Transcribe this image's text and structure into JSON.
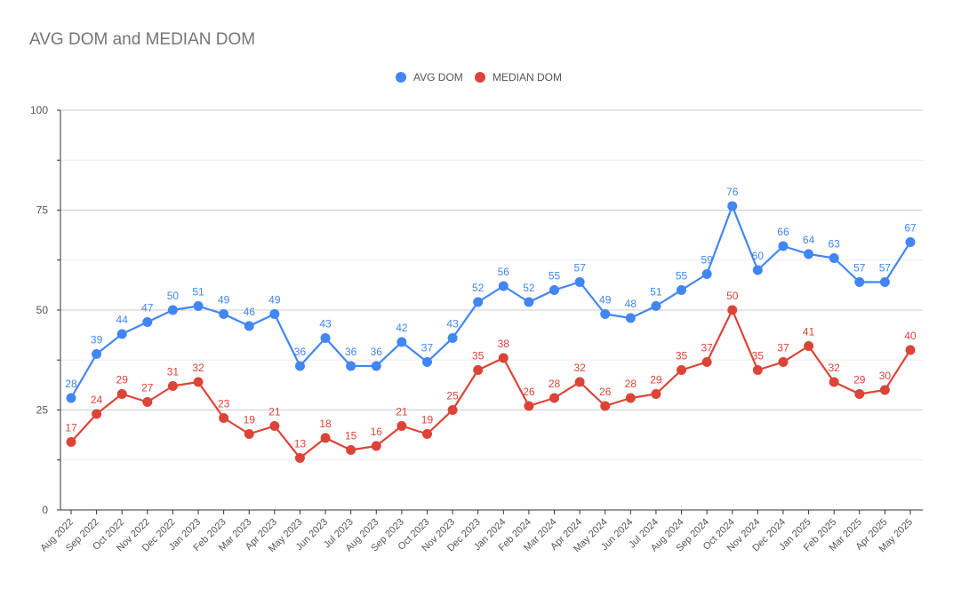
{
  "chart_data": {
    "type": "line",
    "title": "AVG DOM and MEDIAN DOM",
    "xlabel": "",
    "ylabel": "",
    "ylim": [
      0,
      100
    ],
    "yticks": [
      "0",
      "25",
      "50",
      "75",
      "100"
    ],
    "grid": true,
    "legend_position": "top",
    "categories": [
      "Aug 2022",
      "Sep 2022",
      "Oct 2022",
      "Nov 2022",
      "Dec 2022",
      "Jan 2023",
      "Feb 2023",
      "Mar 2023",
      "Apr 2023",
      "May 2023",
      "Jun 2023",
      "Jul 2023",
      "Aug 2023",
      "Sep 2023",
      "Oct 2023",
      "Nov 2023",
      "Dec 2023",
      "Jan 2024",
      "Feb 2024",
      "Mar 2024",
      "Apr 2024",
      "May 2024",
      "Jun 2024",
      "Jul 2024",
      "Aug 2024",
      "Sep 2024",
      "Oct 2024",
      "Nov 2024",
      "Dec 2024",
      "Jan 2025",
      "Feb 2025",
      "Mar 2025",
      "Apr 2025",
      "May 2025"
    ],
    "series": [
      {
        "name": "AVG DOM",
        "color": "#4285f4",
        "values": [
          28,
          39,
          44,
          47,
          50,
          51,
          49,
          46,
          49,
          36,
          43,
          36,
          36,
          42,
          37,
          43,
          52,
          56,
          52,
          55,
          57,
          49,
          48,
          51,
          55,
          59,
          76,
          60,
          66,
          64,
          63,
          57,
          57,
          67
        ]
      },
      {
        "name": "MEDIAN DOM",
        "color": "#db4437",
        "values": [
          17,
          24,
          29,
          27,
          31,
          32,
          23,
          19,
          21,
          13,
          18,
          15,
          16,
          21,
          19,
          25,
          35,
          38,
          26,
          28,
          32,
          26,
          28,
          29,
          35,
          37,
          50,
          35,
          37,
          41,
          32,
          29,
          30,
          40
        ]
      }
    ]
  }
}
